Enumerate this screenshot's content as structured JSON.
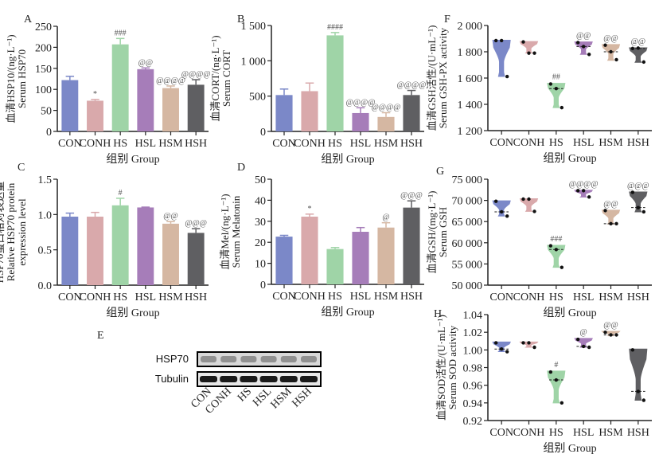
{
  "figure": {
    "group_axis_label": "组别  Group",
    "groups": [
      "CON",
      "CONH",
      "HS",
      "HSL",
      "HSM",
      "HSH"
    ],
    "group_colors": [
      "#7b88c8",
      "#d9a9ab",
      "#9fd4a7",
      "#a67db9",
      "#d5b7a2",
      "#5f5f62"
    ]
  },
  "chart_data": [
    {
      "id": "A",
      "type": "bar",
      "panel_label": "A",
      "ylabel_cn": "血清HSP10/(ng·L⁻¹)",
      "ylabel_en": "Serum HSP70",
      "xlabel": "组别  Group",
      "categories": [
        "CON",
        "CONH",
        "HS",
        "HSL",
        "HSM",
        "HSH"
      ],
      "values": [
        122,
        73,
        207,
        148,
        103,
        111
      ],
      "errors": [
        9,
        3,
        14,
        3,
        5,
        12
      ],
      "annotations": [
        "",
        "*",
        "###",
        "@@",
        "@@@@",
        "@@@@"
      ],
      "ylim": [
        0,
        250
      ],
      "yticks": [
        0,
        50,
        100,
        150,
        200,
        250
      ],
      "ytick_labels": [
        "0",
        "50",
        "100",
        "150",
        "200",
        "250"
      ]
    },
    {
      "id": "B",
      "type": "bar",
      "panel_label": "B",
      "ylabel_cn": "血清CORT/(ng·L⁻¹)",
      "ylabel_en": "Serum CORT",
      "xlabel": "组别  Group",
      "categories": [
        "CON",
        "CONH",
        "HS",
        "HSL",
        "HSM",
        "HSH"
      ],
      "values": [
        515,
        570,
        1360,
        260,
        205,
        515
      ],
      "errors": [
        85,
        115,
        40,
        75,
        60,
        65
      ],
      "annotations": [
        "",
        "",
        "####",
        "@@@@",
        "@@@@",
        "@@@@"
      ],
      "ylim": [
        0,
        1500
      ],
      "yticks": [
        0,
        500,
        1000,
        1500
      ],
      "ytick_labels": [
        "0",
        "500",
        "1 000",
        "1 500"
      ]
    },
    {
      "id": "C",
      "type": "bar",
      "panel_label": "C",
      "ylabel_cn": "HSP70蛋白相对表达量",
      "ylabel_en": "Relative HSP70 protein",
      "ylabel_en2": "expression level",
      "xlabel": "组别  Group",
      "categories": [
        "CON",
        "CONH",
        "HS",
        "HSL",
        "HSM",
        "HSH"
      ],
      "values": [
        0.97,
        0.97,
        1.13,
        1.1,
        0.87,
        0.74
      ],
      "errors": [
        0.05,
        0.06,
        0.1,
        0.005,
        0.03,
        0.06
      ],
      "annotations": [
        "",
        "",
        "#",
        "",
        "@@",
        "@@@"
      ],
      "ylim": [
        0,
        1.5
      ],
      "yticks": [
        0,
        0.5,
        1.0,
        1.5
      ],
      "ytick_labels": [
        "0.0",
        "0.5",
        "1.0",
        "1.5"
      ]
    },
    {
      "id": "D",
      "type": "bar",
      "panel_label": "D",
      "ylabel_cn": "血清Mel/(ng·L⁻¹)",
      "ylabel_en": "Serum Melatonin",
      "xlabel": "组别  Group",
      "categories": [
        "CON",
        "CONH",
        "HS",
        "HSL",
        "HSM",
        "HSH"
      ],
      "values": [
        22.7,
        32.2,
        16.8,
        25.0,
        27.0,
        36.5
      ],
      "errors": [
        0.6,
        1.2,
        0.7,
        2.0,
        2.3,
        3.2
      ],
      "annotations": [
        "",
        "*",
        "",
        "",
        "@",
        "@@@"
      ],
      "ylim": [
        0,
        50
      ],
      "yticks": [
        0,
        10,
        20,
        30,
        40,
        50
      ],
      "ytick_labels": [
        "0",
        "10",
        "20",
        "30",
        "40",
        "50"
      ]
    },
    {
      "id": "F",
      "type": "violin",
      "panel_label": "F",
      "ylabel_cn": "血清GSH活性/(U·mL⁻¹)",
      "ylabel_en": "Serum GSH-PX activity",
      "xlabel": "组别  Group",
      "categories": [
        "CON",
        "CONH",
        "HS",
        "HSL",
        "HSM",
        "HSH"
      ],
      "points": [
        [
          1885,
          1885,
          1612
        ],
        [
          1875,
          1790,
          1790
        ],
        [
          1555,
          1520,
          1375
        ],
        [
          1870,
          1840,
          1780
        ],
        [
          1850,
          1800,
          1740
        ],
        [
          1825,
          1828,
          1722
        ]
      ],
      "ranges": [
        [
          1612,
          1888
        ],
        [
          1790,
          1878
        ],
        [
          1375,
          1560
        ],
        [
          1780,
          1875
        ],
        [
          1735,
          1855
        ],
        [
          1720,
          1830
        ]
      ],
      "medians": [
        null,
        null,
        1520,
        1840,
        1800,
        1825
      ],
      "annotations": [
        "",
        "",
        "##",
        "@@",
        "@@",
        "@@"
      ],
      "ylim": [
        1200,
        2000
      ],
      "yticks": [
        1200,
        1400,
        1600,
        1800,
        2000
      ],
      "ytick_labels": [
        "1 200",
        "1 400",
        "1 600",
        "1 800",
        "2 000"
      ]
    },
    {
      "id": "G",
      "type": "violin",
      "panel_label": "G",
      "ylabel_cn": "血清GSH/(mg·L⁻¹)",
      "ylabel_en": "Serum GSH",
      "xlabel": "组别  Group",
      "categories": [
        "CON",
        "CONH",
        "HS",
        "HSL",
        "HSM",
        "HSH"
      ],
      "points": [
        [
          69800,
          67300,
          66300
        ],
        [
          70300,
          70300,
          67400
        ],
        [
          59300,
          58400,
          54200
        ],
        [
          72300,
          72300,
          70800
        ],
        [
          67600,
          64500,
          64500
        ],
        [
          71900,
          68300,
          67300
        ]
      ],
      "ranges": [
        [
          66300,
          69900
        ],
        [
          67400,
          70400
        ],
        [
          54200,
          59400
        ],
        [
          70800,
          72400
        ],
        [
          64400,
          67700
        ],
        [
          67300,
          72000
        ]
      ],
      "medians": [
        67300,
        null,
        58400,
        null,
        64500,
        68300
      ],
      "annotations": [
        "",
        "",
        "###",
        "@@@@",
        "@@",
        "@@@"
      ],
      "ylim": [
        50000,
        75000
      ],
      "yticks": [
        50000,
        55000,
        60000,
        65000,
        70000,
        75000
      ],
      "ytick_labels": [
        "50 000",
        "55 000",
        "60 000",
        "65 000",
        "70 000",
        "75 000"
      ]
    },
    {
      "id": "H",
      "type": "violin",
      "panel_label": "H",
      "ylabel_cn": "血清SOD活性/(U·mL⁻¹)",
      "ylabel_en": "Serum SOD activity",
      "xlabel": "组别  Group",
      "categories": [
        "CON",
        "CONH",
        "HS",
        "HSL",
        "HSM",
        "HSH"
      ],
      "points": [
        [
          1.008,
          1.001,
          0.998
        ],
        [
          1.008,
          1.008,
          1.003
        ],
        [
          0.975,
          0.966,
          0.94
        ],
        [
          1.012,
          1.004,
          1.003
        ],
        [
          1.02,
          1.017,
          1.017
        ],
        [
          1.0,
          0.953,
          0.943
        ]
      ],
      "ranges": [
        [
          0.998,
          1.009
        ],
        [
          1.003,
          1.009
        ],
        [
          0.94,
          0.976
        ],
        [
          1.003,
          1.013
        ],
        [
          1.016,
          1.021
        ],
        [
          0.943,
          1.001
        ]
      ],
      "medians": [
        1.001,
        null,
        0.966,
        1.004,
        1.017,
        0.953
      ],
      "annotations": [
        "",
        "",
        "#",
        "@",
        "@@",
        ""
      ],
      "ylim": [
        0.92,
        1.04
      ],
      "yticks": [
        0.92,
        0.94,
        0.96,
        0.98,
        1.0,
        1.02,
        1.04
      ],
      "ytick_labels": [
        "0.92",
        "0.94",
        "0.96",
        "0.98",
        "1.00",
        "1.02",
        "1.04"
      ]
    }
  ],
  "western_blot": {
    "panel_label": "E",
    "rows": [
      "HSP70",
      "Tubulin"
    ],
    "lanes": [
      "CON",
      "CONH",
      "HS",
      "HSL",
      "HSM",
      "HSH"
    ]
  }
}
